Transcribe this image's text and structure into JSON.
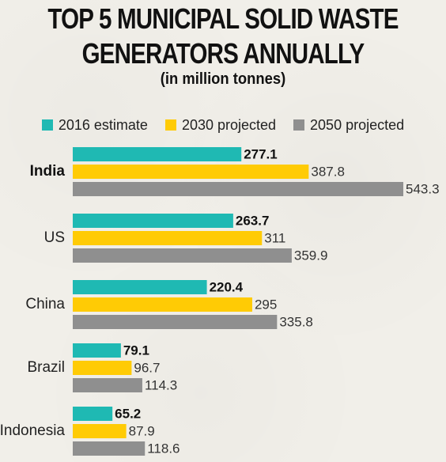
{
  "header": {
    "title_line_1": "TOP 5 MUNICIPAL SOLID WASTE",
    "title_line_2": "GENERATORS ANNUALLY",
    "subtitle": "(in million tonnes)"
  },
  "legend": {
    "items": [
      {
        "label": "2016 estimate",
        "color": "#1fb9b3"
      },
      {
        "label": "2030 projected",
        "color": "#ffcb05"
      },
      {
        "label": "2050 projected",
        "color": "#8f8f8f"
      }
    ]
  },
  "chart_data": {
    "type": "bar",
    "orientation": "horizontal",
    "title": "TOP 5 MUNICIPAL SOLID WASTE GENERATORS ANNUALLY",
    "subtitle": "(in million tonnes)",
    "categories": [
      "India",
      "US",
      "China",
      "Brazil",
      "Indonesia"
    ],
    "series": [
      {
        "name": "2016 estimate",
        "color": "#1fb9b3",
        "values": [
          277.1,
          263.7,
          220.4,
          79.1,
          65.2
        ]
      },
      {
        "name": "2030 projected",
        "color": "#ffcb05",
        "values": [
          387.8,
          311,
          295,
          96.7,
          87.9
        ]
      },
      {
        "name": "2050 projected",
        "color": "#8f8f8f",
        "values": [
          543.3,
          359.9,
          335.8,
          114.3,
          118.6
        ]
      }
    ],
    "xlim": [
      0,
      543.3
    ],
    "grid": false,
    "legend_position": "top-center"
  }
}
